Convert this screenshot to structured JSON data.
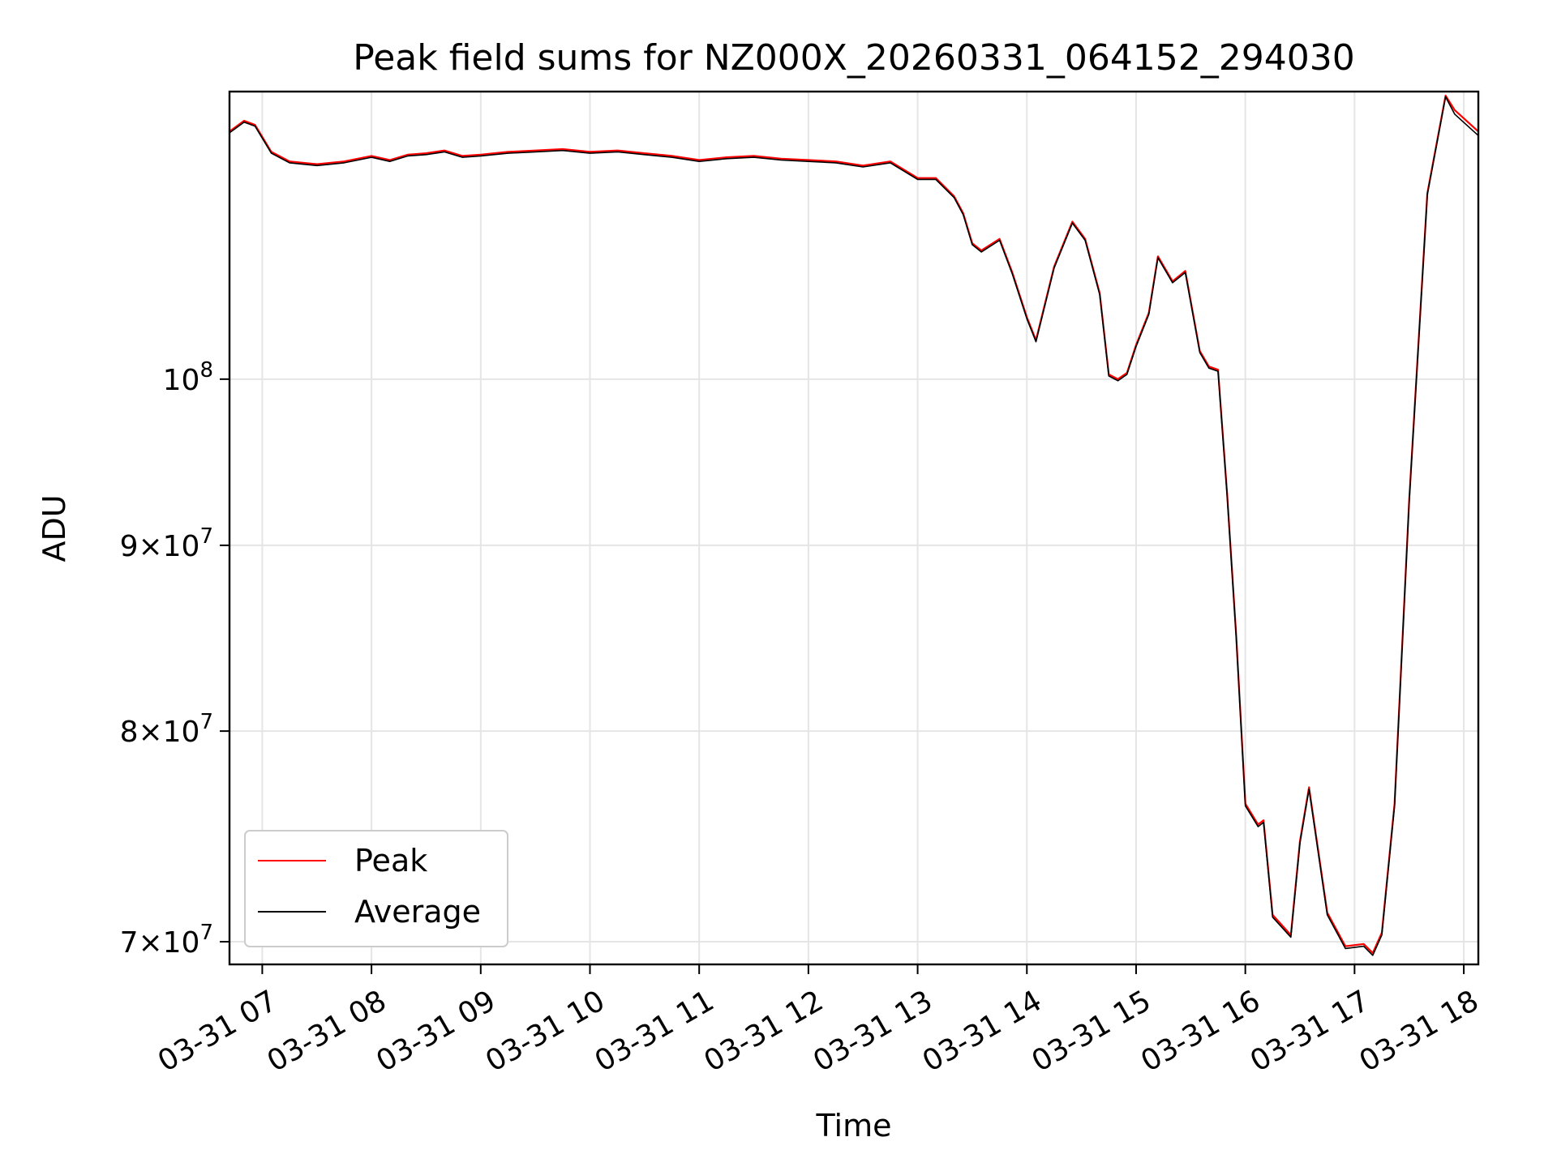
{
  "chart_data": {
    "type": "line",
    "title": "Peak field sums for NZ000X_20260331_064152_294030",
    "xlabel": "Time",
    "ylabel": "ADU",
    "y_scale": "log",
    "ylim": [
      69000000,
      120000000
    ],
    "xlim": [
      "2026-03-31T06:42",
      "2026-03-31T18:08"
    ],
    "grid": true,
    "legend_position": "lower-left",
    "colors": {
      "Peak": "#ff0000",
      "Average": "#000000"
    },
    "x_ticks": [
      {
        "value": "2026-03-31T07:00",
        "label": "03-31 07"
      },
      {
        "value": "2026-03-31T08:00",
        "label": "03-31 08"
      },
      {
        "value": "2026-03-31T09:00",
        "label": "03-31 09"
      },
      {
        "value": "2026-03-31T10:00",
        "label": "03-31 10"
      },
      {
        "value": "2026-03-31T11:00",
        "label": "03-31 11"
      },
      {
        "value": "2026-03-31T12:00",
        "label": "03-31 12"
      },
      {
        "value": "2026-03-31T13:00",
        "label": "03-31 13"
      },
      {
        "value": "2026-03-31T14:00",
        "label": "03-31 14"
      },
      {
        "value": "2026-03-31T15:00",
        "label": "03-31 15"
      },
      {
        "value": "2026-03-31T16:00",
        "label": "03-31 16"
      },
      {
        "value": "2026-03-31T17:00",
        "label": "03-31 17"
      },
      {
        "value": "2026-03-31T18:00",
        "label": "03-31 18"
      }
    ],
    "y_ticks": [
      {
        "value": 70000000,
        "mantissa": "7",
        "base": "10",
        "exp": "7"
      },
      {
        "value": 80000000,
        "mantissa": "8",
        "base": "10",
        "exp": "7"
      },
      {
        "value": 90000000,
        "mantissa": "9",
        "base": "10",
        "exp": "7"
      },
      {
        "value": 100000000,
        "mantissa": "",
        "base": "10",
        "exp": "8"
      }
    ],
    "x": [
      "2026-03-31T06:42",
      "2026-03-31T06:50",
      "2026-03-31T06:56",
      "2026-03-31T07:05",
      "2026-03-31T07:15",
      "2026-03-31T07:30",
      "2026-03-31T07:45",
      "2026-03-31T08:00",
      "2026-03-31T08:10",
      "2026-03-31T08:20",
      "2026-03-31T08:30",
      "2026-03-31T08:40",
      "2026-03-31T08:50",
      "2026-03-31T09:00",
      "2026-03-31T09:15",
      "2026-03-31T09:30",
      "2026-03-31T09:45",
      "2026-03-31T10:00",
      "2026-03-31T10:15",
      "2026-03-31T10:30",
      "2026-03-31T10:45",
      "2026-03-31T11:00",
      "2026-03-31T11:15",
      "2026-03-31T11:30",
      "2026-03-31T11:45",
      "2026-03-31T12:00",
      "2026-03-31T12:15",
      "2026-03-31T12:30",
      "2026-03-31T12:45",
      "2026-03-31T13:00",
      "2026-03-31T13:10",
      "2026-03-31T13:20",
      "2026-03-31T13:25",
      "2026-03-31T13:30",
      "2026-03-31T13:35",
      "2026-03-31T13:45",
      "2026-03-31T13:52",
      "2026-03-31T14:00",
      "2026-03-31T14:05",
      "2026-03-31T14:15",
      "2026-03-31T14:25",
      "2026-03-31T14:32",
      "2026-03-31T14:40",
      "2026-03-31T14:45",
      "2026-03-31T14:50",
      "2026-03-31T14:55",
      "2026-03-31T15:00",
      "2026-03-31T15:07",
      "2026-03-31T15:12",
      "2026-03-31T15:20",
      "2026-03-31T15:27",
      "2026-03-31T15:35",
      "2026-03-31T15:40",
      "2026-03-31T15:45",
      "2026-03-31T15:50",
      "2026-03-31T15:55",
      "2026-03-31T16:00",
      "2026-03-31T16:07",
      "2026-03-31T16:10",
      "2026-03-31T16:15",
      "2026-03-31T16:25",
      "2026-03-31T16:30",
      "2026-03-31T16:35",
      "2026-03-31T16:45",
      "2026-03-31T16:55",
      "2026-03-31T17:05",
      "2026-03-31T17:10",
      "2026-03-31T17:15",
      "2026-03-31T17:22",
      "2026-03-31T17:30",
      "2026-03-31T17:40",
      "2026-03-31T17:50",
      "2026-03-31T17:55",
      "2026-03-31T18:08"
    ],
    "series": [
      {
        "name": "Peak",
        "values": [
          117000000,
          117800000,
          117500000,
          115500000,
          114800000,
          114600000,
          114800000,
          115200000,
          114900000,
          115300000,
          115400000,
          115600000,
          115200000,
          115300000,
          115500000,
          115600000,
          115700000,
          115500000,
          115600000,
          115400000,
          115200000,
          114900000,
          115100000,
          115200000,
          115000000,
          114900000,
          114800000,
          114500000,
          114800000,
          113600000,
          113600000,
          112300000,
          111100000,
          109000000,
          108500000,
          109300000,
          107000000,
          104000000,
          102500000,
          107400000,
          110500000,
          109300000,
          105600000,
          100300000,
          100000000,
          100400000,
          102200000,
          104300000,
          108100000,
          106400000,
          107100000,
          101800000,
          100800000,
          100600000,
          93000000,
          85000000,
          76400000,
          75400000,
          75600000,
          71200000,
          70300000,
          74600000,
          77200000,
          71300000,
          69800000,
          69900000,
          69500000,
          70400000,
          76400000,
          92600000,
          112500000,
          119700000,
          118600000,
          117000000
        ]
      },
      {
        "name": "Average",
        "values": [
          116900000,
          117700000,
          117400000,
          115400000,
          114700000,
          114500000,
          114700000,
          115100000,
          114800000,
          115200000,
          115300000,
          115500000,
          115100000,
          115200000,
          115400000,
          115500000,
          115600000,
          115400000,
          115500000,
          115300000,
          115100000,
          114800000,
          115000000,
          115100000,
          114900000,
          114800000,
          114700000,
          114400000,
          114700000,
          113500000,
          113500000,
          112200000,
          111000000,
          108900000,
          108400000,
          109200000,
          106900000,
          103900000,
          102400000,
          107300000,
          110400000,
          109200000,
          105500000,
          100200000,
          99900000,
          100300000,
          102100000,
          104200000,
          108000000,
          106300000,
          107000000,
          101700000,
          100700000,
          100500000,
          92900000,
          84900000,
          76300000,
          75300000,
          75500000,
          71100000,
          70200000,
          74500000,
          77100000,
          71200000,
          69700000,
          69800000,
          69400000,
          70300000,
          76300000,
          92500000,
          112400000,
          119600000,
          118300000,
          116700000
        ]
      }
    ]
  }
}
